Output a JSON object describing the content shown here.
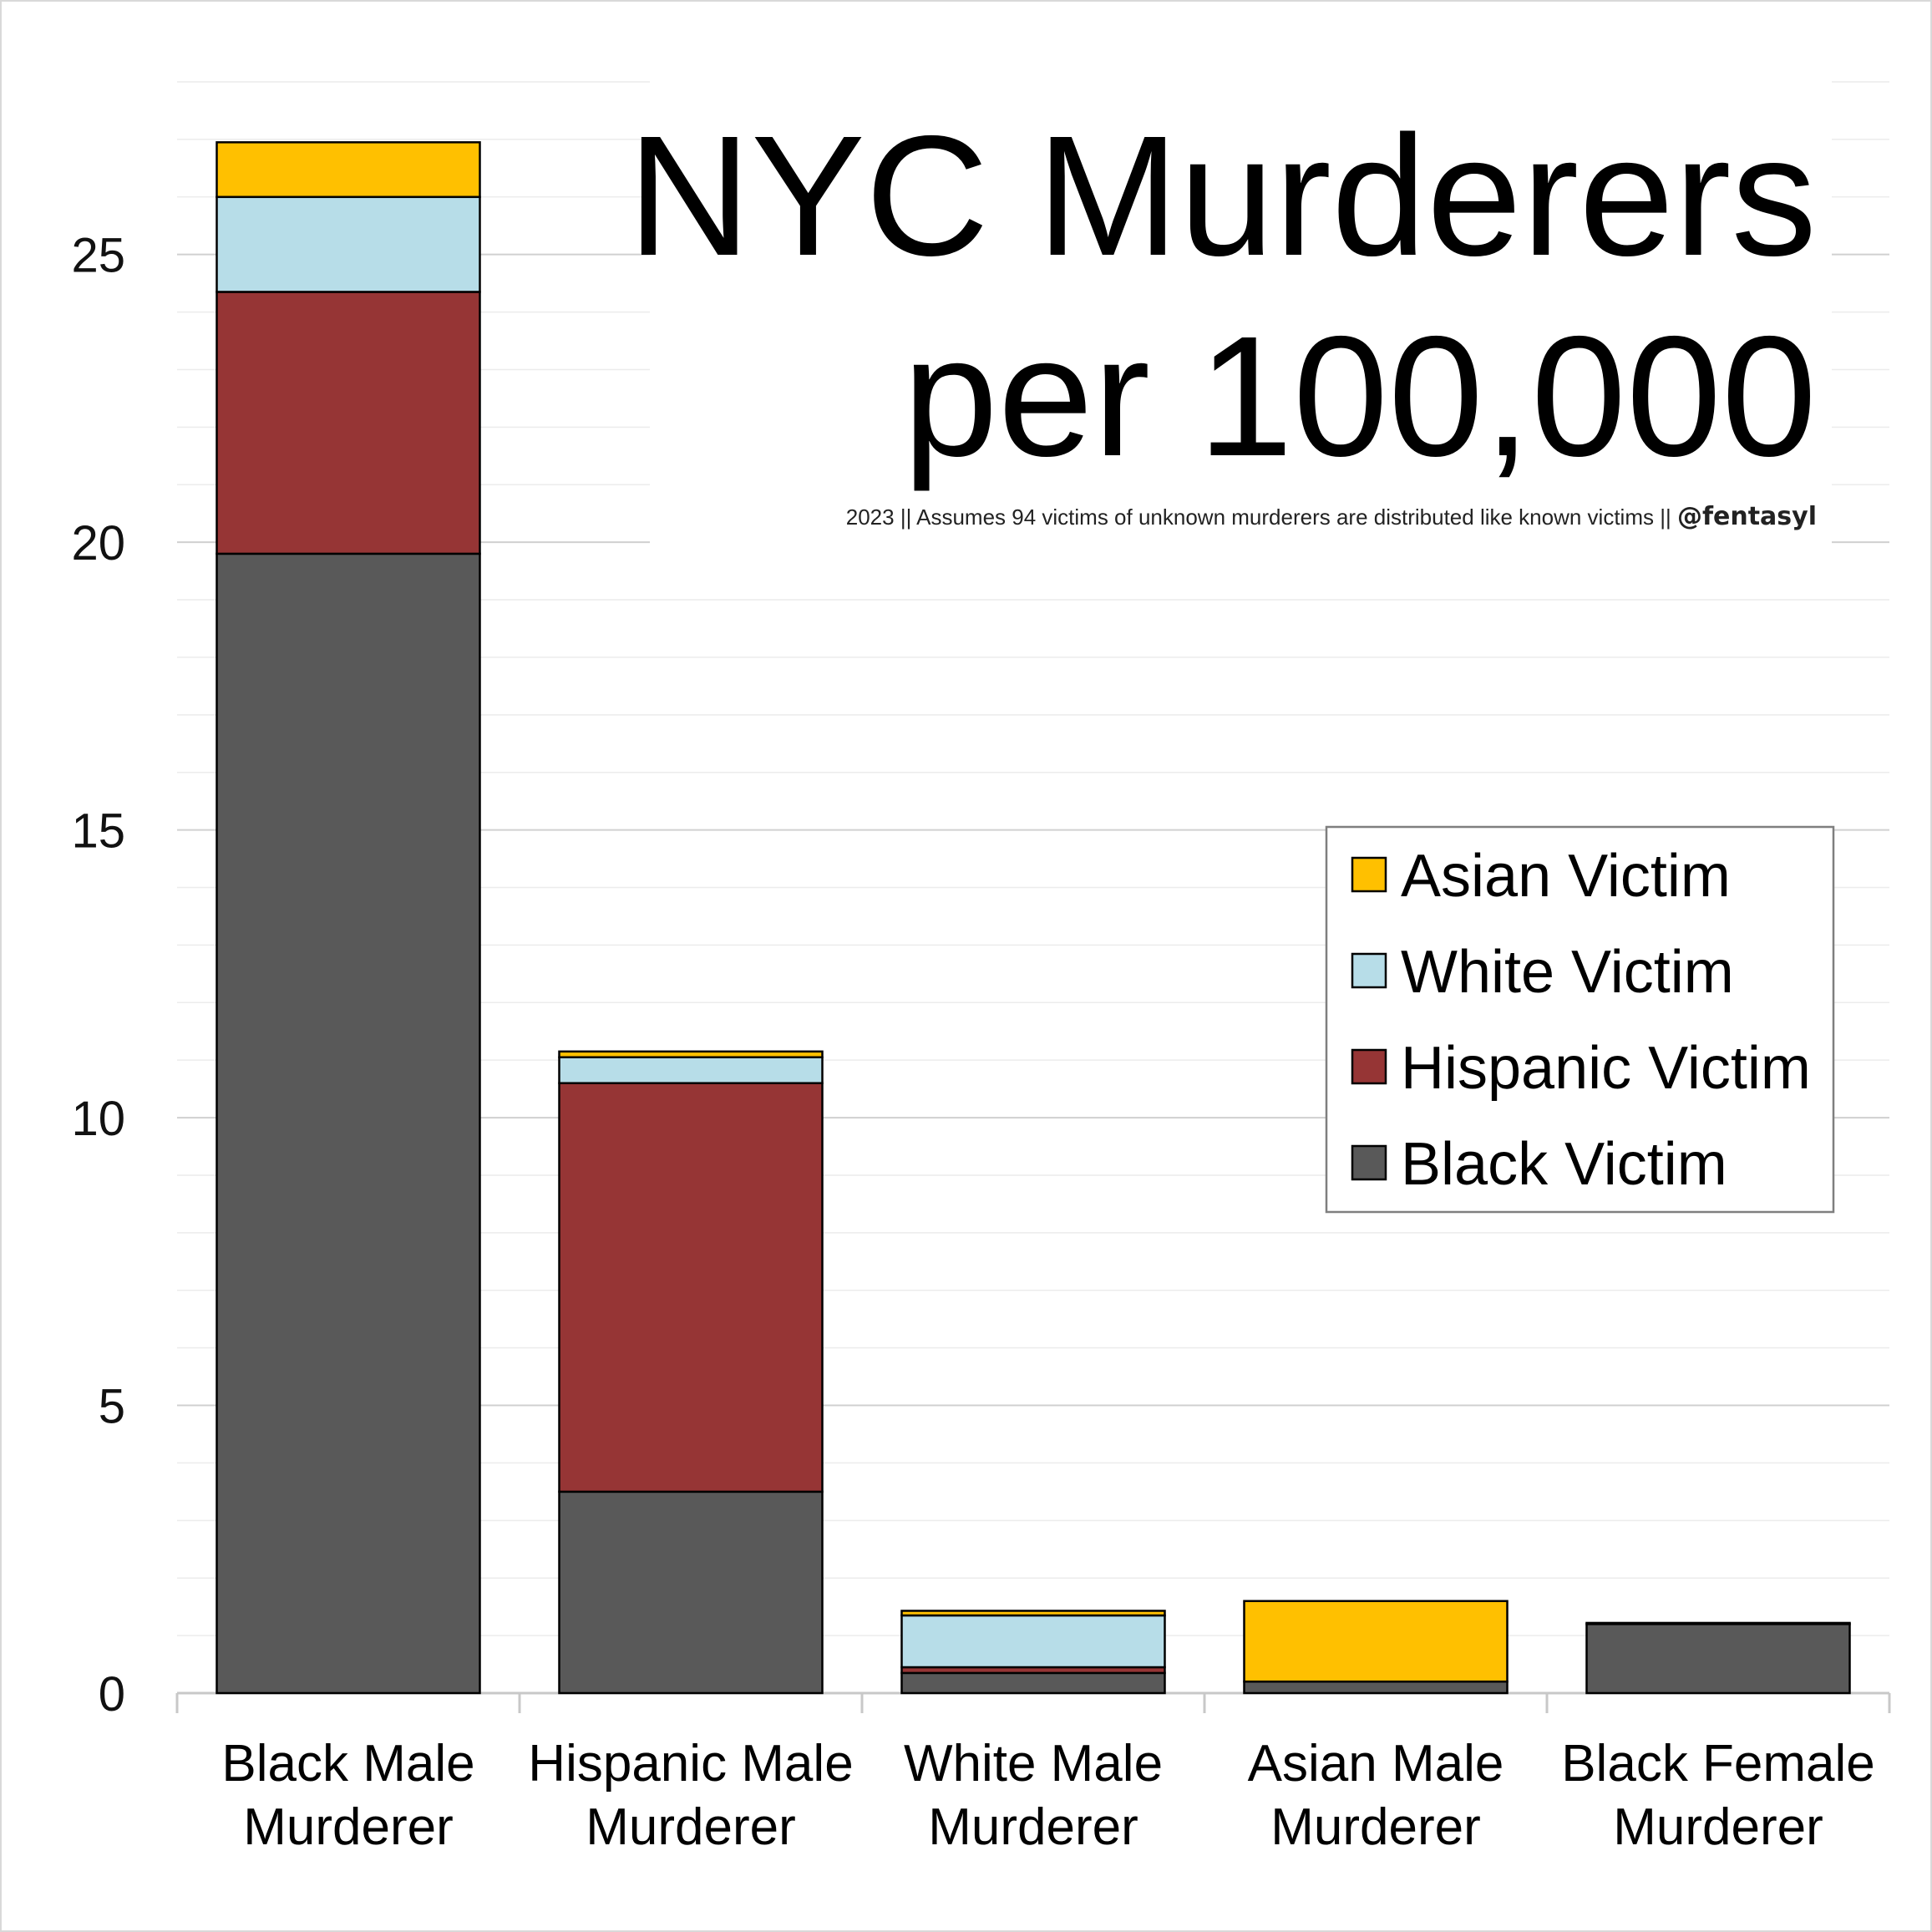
{
  "chart_data": {
    "type": "bar",
    "stacked": true,
    "title_line1": "NYC Murderers",
    "title_line2": "per 100,000",
    "subtitle": "2023 || Assumes 94 victims of unknown murderers are distributed like known victims || ",
    "handle": "@fentasyl",
    "categories": [
      [
        "Black Male",
        "Murderer"
      ],
      [
        "Hispanic Male",
        "Murderer"
      ],
      [
        "White Male",
        "Murderer"
      ],
      [
        "Asian Male",
        "Murderer"
      ],
      [
        "Black Female",
        "Murderer"
      ]
    ],
    "series": [
      {
        "name": "Black Victim",
        "color": "#595959",
        "values": [
          19.8,
          3.5,
          0.35,
          0.2,
          1.2
        ]
      },
      {
        "name": "Hispanic Victim",
        "color": "#963535",
        "values": [
          4.55,
          7.1,
          0.1,
          0.0,
          0.02
        ]
      },
      {
        "name": "White Victim",
        "color": "#b7dde8",
        "values": [
          1.65,
          0.45,
          0.9,
          0.0,
          0.0
        ]
      },
      {
        "name": "Asian Victim",
        "color": "#ffc000",
        "values": [
          0.95,
          0.1,
          0.08,
          1.4,
          0.0
        ]
      }
    ],
    "ylim": [
      0,
      28
    ],
    "yticks": [
      0,
      5,
      10,
      15,
      20,
      25
    ],
    "minor_grid_step": 1,
    "grid": true,
    "legend_position": "center-right",
    "legend_order": [
      "Asian Victim",
      "White Victim",
      "Hispanic Victim",
      "Black Victim"
    ]
  }
}
